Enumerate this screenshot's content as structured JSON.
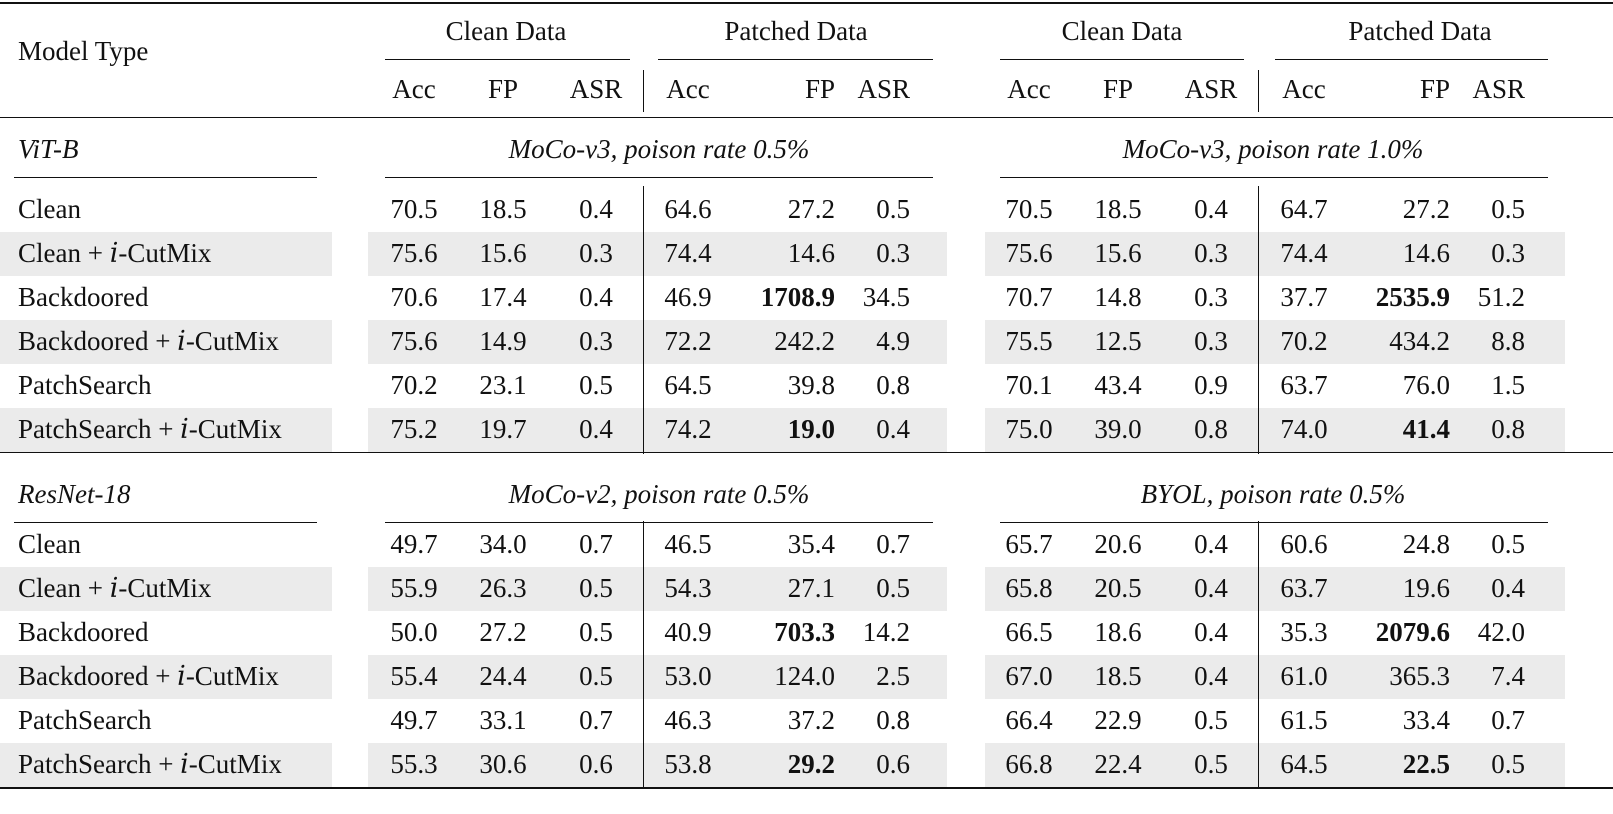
{
  "header": {
    "model_type": "Model Type",
    "groups": [
      "Clean Data",
      "Patched Data",
      "Clean Data",
      "Patched Data"
    ],
    "cols": [
      "Acc",
      "FP",
      "ASR",
      "Acc",
      "FP",
      "ASR",
      "Acc",
      "FP",
      "ASR",
      "Acc",
      "FP",
      "ASR"
    ]
  },
  "sections": [
    {
      "model": "ViT-B",
      "setting_left": "MoCo-v3, poison rate 0.5%",
      "setting_right": "MoCo-v3, poison rate 1.0%",
      "rows": [
        {
          "name": "Clean",
          "values": [
            "70.5",
            "18.5",
            "0.4",
            "64.6",
            "27.2",
            "0.5",
            "70.5",
            "18.5",
            "0.4",
            "64.7",
            "27.2",
            "0.5"
          ],
          "bold": []
        },
        {
          "name": "Clean + 𝑖-CutMix",
          "values": [
            "75.6",
            "15.6",
            "0.3",
            "74.4",
            "14.6",
            "0.3",
            "75.6",
            "15.6",
            "0.3",
            "74.4",
            "14.6",
            "0.3"
          ],
          "bold": []
        },
        {
          "name": "Backdoored",
          "values": [
            "70.6",
            "17.4",
            "0.4",
            "46.9",
            "1708.9",
            "34.5",
            "70.7",
            "14.8",
            "0.3",
            "37.7",
            "2535.9",
            "51.2"
          ],
          "bold": [
            4,
            10
          ]
        },
        {
          "name": "Backdoored + 𝑖-CutMix",
          "values": [
            "75.6",
            "14.9",
            "0.3",
            "72.2",
            "242.2",
            "4.9",
            "75.5",
            "12.5",
            "0.3",
            "70.2",
            "434.2",
            "8.8"
          ],
          "bold": []
        },
        {
          "name": "PatchSearch",
          "values": [
            "70.2",
            "23.1",
            "0.5",
            "64.5",
            "39.8",
            "0.8",
            "70.1",
            "43.4",
            "0.9",
            "63.7",
            "76.0",
            "1.5"
          ],
          "bold": []
        },
        {
          "name": "PatchSearch + 𝑖-CutMix",
          "values": [
            "75.2",
            "19.7",
            "0.4",
            "74.2",
            "19.0",
            "0.4",
            "75.0",
            "39.0",
            "0.8",
            "74.0",
            "41.4",
            "0.8"
          ],
          "bold": [
            4,
            10
          ]
        }
      ]
    },
    {
      "model": "ResNet-18",
      "setting_left": "MoCo-v2, poison rate 0.5%",
      "setting_right": "BYOL, poison rate 0.5%",
      "rows": [
        {
          "name": "Clean",
          "values": [
            "49.7",
            "34.0",
            "0.7",
            "46.5",
            "35.4",
            "0.7",
            "65.7",
            "20.6",
            "0.4",
            "60.6",
            "24.8",
            "0.5"
          ],
          "bold": []
        },
        {
          "name": "Clean + 𝑖-CutMix",
          "values": [
            "55.9",
            "26.3",
            "0.5",
            "54.3",
            "27.1",
            "0.5",
            "65.8",
            "20.5",
            "0.4",
            "63.7",
            "19.6",
            "0.4"
          ],
          "bold": []
        },
        {
          "name": "Backdoored",
          "values": [
            "50.0",
            "27.2",
            "0.5",
            "40.9",
            "703.3",
            "14.2",
            "66.5",
            "18.6",
            "0.4",
            "35.3",
            "2079.6",
            "42.0"
          ],
          "bold": [
            4,
            10
          ]
        },
        {
          "name": "Backdoored + 𝑖-CutMix",
          "values": [
            "55.4",
            "24.4",
            "0.5",
            "53.0",
            "124.0",
            "2.5",
            "67.0",
            "18.5",
            "0.4",
            "61.0",
            "365.3",
            "7.4"
          ],
          "bold": []
        },
        {
          "name": "PatchSearch",
          "values": [
            "49.7",
            "33.1",
            "0.7",
            "46.3",
            "37.2",
            "0.8",
            "66.4",
            "22.9",
            "0.5",
            "61.5",
            "33.4",
            "0.7"
          ],
          "bold": []
        },
        {
          "name": "PatchSearch + 𝑖-CutMix",
          "values": [
            "55.3",
            "30.6",
            "0.6",
            "53.8",
            "29.2",
            "0.6",
            "66.8",
            "22.4",
            "0.5",
            "64.5",
            "22.5",
            "0.5"
          ],
          "bold": [
            4,
            10
          ]
        }
      ]
    }
  ]
}
